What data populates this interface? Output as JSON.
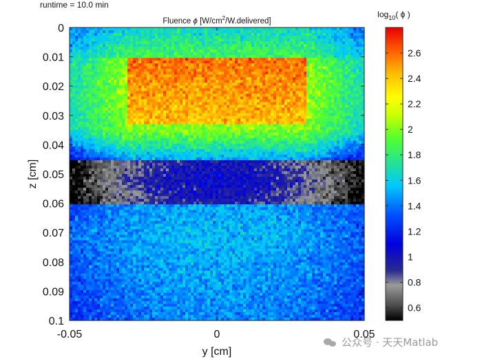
{
  "header": {
    "runtime_label": "runtime = 10.0 min"
  },
  "watermark": {
    "text": "公众号 · 天天Matlab",
    "icon": "wechat-icon"
  },
  "chart_data": {
    "type": "heatmap",
    "title_prefix": "Fluence ",
    "title_symbol": "ϕ",
    "title_units_a": " [W/cm",
    "title_units_sup": "2",
    "title_units_b": "/W.delivered]",
    "xlabel": "y [cm]",
    "ylabel": "z [cm]",
    "xlim": [
      -0.05,
      0.05
    ],
    "ylim": [
      0,
      0.1
    ],
    "y_direction": "reversed",
    "x_ticks": [
      "-0.05",
      "0",
      "0.05"
    ],
    "x_tick_values": [
      -0.05,
      0,
      0.05
    ],
    "y_ticks": [
      "0",
      "0.01",
      "0.02",
      "0.03",
      "0.04",
      "0.05",
      "0.06",
      "0.07",
      "0.08",
      "0.09",
      "0.1"
    ],
    "y_tick_values": [
      0,
      0.01,
      0.02,
      0.03,
      0.04,
      0.05,
      0.06,
      0.07,
      0.08,
      0.09,
      0.1
    ],
    "colormap": "jet with grayscale low end",
    "colorbar": {
      "label_prefix": "log",
      "label_sub": "10",
      "label_suffix": "( ϕ )",
      "range": [
        0.5,
        2.8
      ],
      "ticks": [
        "0.6",
        "0.8",
        "1",
        "1.2",
        "1.4",
        "1.6",
        "1.8",
        "2",
        "2.2",
        "2.4",
        "2.6"
      ],
      "tick_values": [
        0.6,
        0.8,
        1.0,
        1.2,
        1.4,
        1.6,
        1.8,
        2.0,
        2.2,
        2.4,
        2.6
      ]
    },
    "features": {
      "beam_region": {
        "y_range": [
          -0.03,
          0.03
        ],
        "z_range": [
          0.01,
          0.03
        ],
        "log10_fluence": 2.6
      },
      "shadow_band": {
        "z_range": [
          0.045,
          0.058
        ],
        "log10_fluence_at_edges": 0.6
      },
      "deep_region": {
        "z_range": [
          0.06,
          0.1
        ],
        "log10_fluence": 1.4
      }
    },
    "grid": false,
    "legend": "colorbar-right"
  }
}
